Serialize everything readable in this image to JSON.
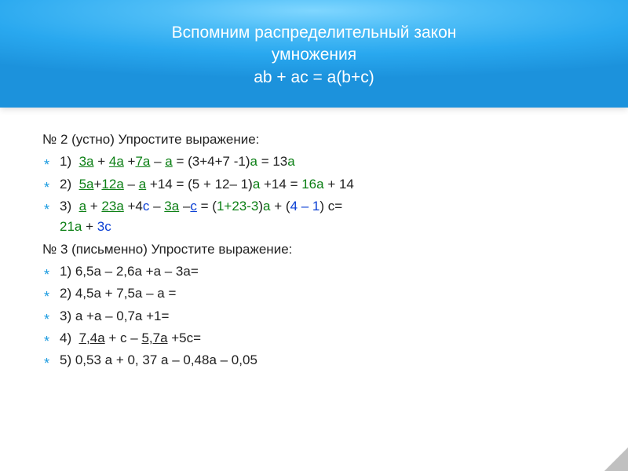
{
  "header": {
    "line1": "Вспомним распределительный закон",
    "line2": "умножения",
    "line3": "ab + ac = a(b+c)"
  },
  "content": {
    "ex2_title": "№ 2 (устно) Упростите выражение:",
    "ex2_1": {
      "p1": "1)  ",
      "t3a": "3a",
      "plus1": " + ",
      "t4a": "4a",
      "plus2": " +",
      "t7a": "7a",
      "minus1": " – ",
      "ta": "a",
      "eq": " = (3+4+7 -1)",
      "a1": "a",
      "eq2": " = 13",
      "a2": "a"
    },
    "ex2_2": {
      "p1": "2)  ",
      "t5a": "5a",
      "plus1": "+",
      "t12a": "12a",
      "minus1": " – ",
      "ta": "a",
      "rest1": " +14 = (5 + 12– 1)",
      "a1": "a",
      "rest2": " +14 = ",
      "ans": "16a",
      "rest3": " + 14"
    },
    "ex2_3": {
      "p1": "3)  ",
      "ta1": "a",
      "plus1": " + ",
      "t23a": "23a",
      "rest1": " +4",
      "c1": "c",
      "minus1": " – ",
      "t3a": "3a",
      "minus2": " –",
      "c2": "c",
      "eq1": " = (",
      "g1": "1+23-3",
      "eq2": ")",
      "a1": "a",
      "rest2": " + (",
      "b1": "4 – 1",
      "rest3": ") c=",
      "line2a": "21a",
      "line2b": " + ",
      "line2c": "3c"
    },
    "ex3_title": "№ 3 (письменно)  Упростите выражение:",
    "ex3_1": "1) 6,5a – 2,6a +a – 3a=",
    "ex3_2": "2) 4,5a + 7,5a – a =",
    "ex3_3": "3)  a +a – 0,7a +1=",
    "ex3_4": {
      "p1": "4)  ",
      "t74a": "7,4a",
      "mid": " + c – ",
      "t57a": "5,7a",
      "end": " +5c="
    },
    "ex3_5": "5)  0,53 a + 0, 37 a – 0,48a – 0,05"
  },
  "colors": {
    "green": "#0b7f14",
    "blue": "#0a3fd4",
    "bullet": "#1b9be0",
    "bg_top": "#7fd6ff",
    "bg_bottom": "#1c92dc"
  }
}
